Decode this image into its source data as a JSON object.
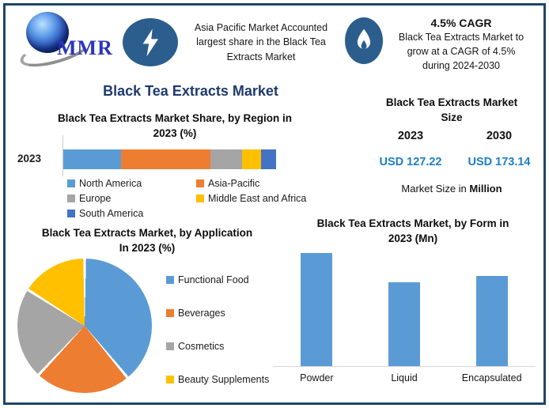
{
  "colors": {
    "border_navy": "#1f4568",
    "badge_blue": "#2b5e8c",
    "title_navy": "#1e3a6e",
    "value_blue": "#1b7fc3",
    "series_blue": "#5B9BD5",
    "series_orange": "#ED7D31",
    "series_gray": "#A5A5A5",
    "series_yellow": "#FFC000",
    "series_dark_blue": "#4472C4"
  },
  "header": {
    "logo": {
      "text": "MMR"
    },
    "highlight": {
      "lines": [
        "Asia Pacific Market Accounted",
        "largest share in the Black Tea",
        "Extracts Market"
      ]
    },
    "cagr": {
      "title": "4.5% CAGR",
      "lines": [
        "Black Tea Extracts Market to",
        "grow at a CAGR of 4.5%",
        "during 2024-2030"
      ]
    }
  },
  "main_title": "Black Tea Extracts Market",
  "chart_data": [
    {
      "type": "bar",
      "subtype": "horizontal-stacked",
      "title_lines": [
        "Black Tea Extracts Market Share, by Region in",
        "2023 (%)"
      ],
      "title": "Black Tea Extracts Market Share, by Region in 2023 (%)",
      "categories": [
        "2023"
      ],
      "series": [
        {
          "name": "North America",
          "value": 27,
          "color": "#5B9BD5"
        },
        {
          "name": "Asia-Pacific",
          "value": 42,
          "color": "#ED7D31"
        },
        {
          "name": "Europe",
          "value": 15,
          "color": "#A5A5A5"
        },
        {
          "name": "Middle East and Africa",
          "value": 9,
          "color": "#FFC000"
        },
        {
          "name": "South America",
          "value": 7,
          "color": "#4472C4"
        }
      ],
      "xlim": [
        0,
        100
      ],
      "grid": false,
      "legend_position": "bottom",
      "note": "segment sizes estimated from pixel widths; no data labels shown"
    },
    {
      "type": "pie",
      "title_lines": [
        "Black Tea Extracts Market, by Application",
        "In 2023 (%)"
      ],
      "title": "Black Tea Extracts Market, by Application In 2023 (%)",
      "slices": [
        {
          "name": "Functional Food",
          "value": 39,
          "color": "#5B9BD5"
        },
        {
          "name": "Beverages",
          "value": 23,
          "color": "#ED7D31"
        },
        {
          "name": "Cosmetics",
          "value": 22,
          "color": "#A5A5A5"
        },
        {
          "name": "Beauty Supplements",
          "value": 16,
          "color": "#FFC000"
        }
      ],
      "start_angle_deg": 0,
      "direction": "clockwise",
      "legend_position": "right",
      "note": "slice percentages estimated from angles; no data labels shown"
    },
    {
      "type": "bar",
      "title_lines": [
        "Black Tea Extracts Market, by Form in",
        "2023 (Mn)"
      ],
      "title": "Black Tea Extracts Market, by Form in 2023 (Mn)",
      "categories": [
        "Powder",
        "Liquid",
        "Encapsulated"
      ],
      "values": [
        50,
        37,
        40
      ],
      "bar_color": "#5B9BD5",
      "grid": false,
      "y_axis_labels": "none",
      "note": "y-axis unlabeled; values estimated from relative bar heights (ratio 1.00 : 0.74 : 0.81)"
    },
    {
      "type": "table",
      "title_lines": [
        "Black Tea Extracts Market",
        "Size"
      ],
      "title": "Black Tea Extracts Market Size",
      "columns": [
        "2023",
        "2030"
      ],
      "values": [
        "USD 127.22",
        "USD 173.14"
      ],
      "footnote": [
        "Market Size in ",
        "Million"
      ]
    }
  ]
}
